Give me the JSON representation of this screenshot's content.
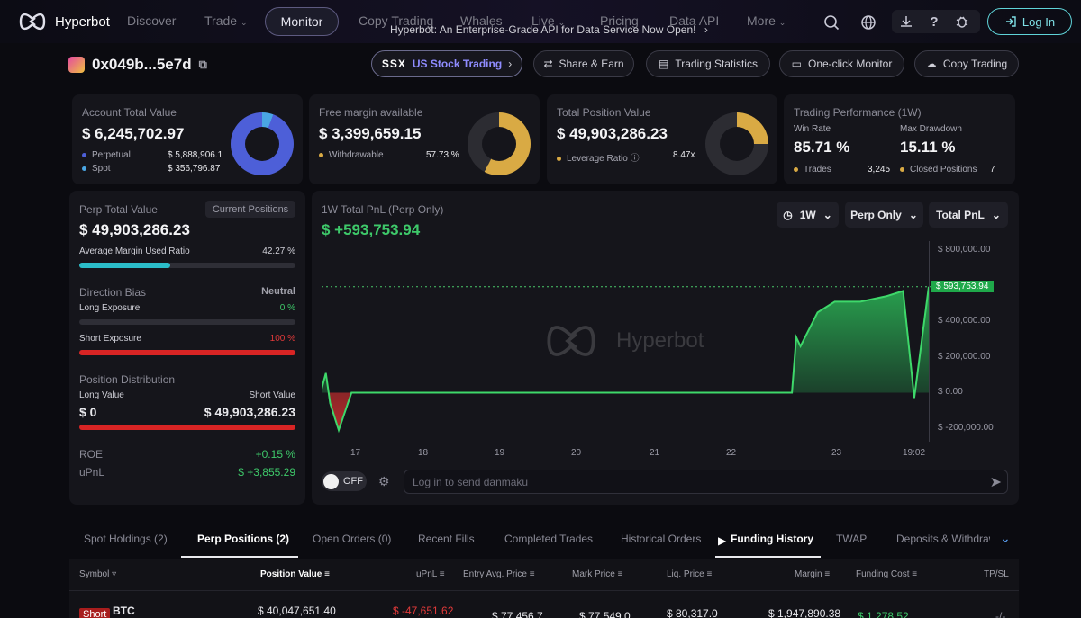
{
  "nav": {
    "brand": "Hyperbot",
    "items": [
      "Discover",
      "Trade",
      "Monitor",
      "Copy Trading",
      "Whales",
      "Live",
      "Pricing",
      "Data API",
      "More"
    ],
    "banner": "Hyperbot: An Enterprise-Grade API for Data Service Now Open!",
    "login": "Log In"
  },
  "wallet": {
    "address": "0x049b...5e7d"
  },
  "actions": {
    "us_stock": "US Stock Trading",
    "share_earn": "Share & Earn",
    "trading_stats": "Trading Statistics",
    "one_click": "One-click Monitor",
    "copy_trading": "Copy Trading"
  },
  "cards": {
    "account": {
      "label": "Account Total Value",
      "value": "$ 6,245,702.97",
      "perp_label": "Perpetual",
      "perp_value": "$ 5,888,906.1",
      "spot_label": "Spot",
      "spot_value": "$ 356,796.87",
      "perp_share": 0.943
    },
    "margin": {
      "label": "Free margin available",
      "value": "$ 3,399,659.15",
      "withdraw_label": "Withdrawable",
      "withdraw_value": "57.73 %",
      "share": 0.5773
    },
    "position": {
      "label": "Total Position Value",
      "value": "$ 49,903,286.23",
      "lev_label": "Leverage Ratio",
      "lev_value": "8.47x",
      "share": 0.25
    },
    "performance": {
      "label": "Trading Performance (1W)",
      "win_label": "Win Rate",
      "win_value": "85.71 %",
      "dd_label": "Max Drawdown",
      "dd_value": "15.11 %",
      "trades_label": "Trades",
      "trades_value": "3,245",
      "closed_label": "Closed Positions",
      "closed_value": "7"
    }
  },
  "perp_panel": {
    "title": "Perp Total Value",
    "current_btn": "Current Positions",
    "value": "$ 49,903,286.23",
    "margin_ratio_label": "Average Margin Used Ratio",
    "margin_ratio_value": "42.27 %",
    "margin_ratio": 0.4227,
    "bias_label": "Direction Bias",
    "bias_value": "Neutral",
    "long_label": "Long Exposure",
    "long_value": "0 %",
    "long_ratio": 0,
    "short_label": "Short Exposure",
    "short_value": "100 %",
    "short_ratio": 1,
    "dist_label": "Position Distribution",
    "long_val_label": "Long Value",
    "short_val_label": "Short Value",
    "long_val": "$ 0",
    "short_val": "$ 49,903,286.23",
    "roe_label": "ROE",
    "roe_value": "+0.15 %",
    "upnl_label": "uPnL",
    "upnl_value": "$ +3,855.29"
  },
  "chart_panel": {
    "title": "1W Total PnL (Perp Only)",
    "value": "$ +593,753.94",
    "range": "1W",
    "filter": "Perp Only",
    "metric": "Total PnL",
    "watermark": "Hyperbot",
    "danmaku_toggle": "OFF",
    "danmaku_placeholder": "Log in to send danmaku"
  },
  "chart_data": {
    "type": "area",
    "ylim": [
      -250000,
      850000
    ],
    "yticks": [
      "$ 800,000.00",
      "$ 400,000.00",
      "$ 200,000.00",
      "$ 0.00",
      "$ -200,000.00"
    ],
    "ytick_values": [
      800000,
      400000,
      200000,
      0,
      -200000
    ],
    "xticks": [
      "17",
      "18",
      "19",
      "20",
      "21",
      "22",
      "23",
      "19:02"
    ],
    "current_label": "$ 593,753.94",
    "current_value": 593753.94,
    "points": [
      [
        0,
        20000
      ],
      [
        0.05,
        110000
      ],
      [
        0.1,
        -60000
      ],
      [
        0.2,
        -210000
      ],
      [
        0.35,
        0
      ],
      [
        5.5,
        0
      ],
      [
        5.55,
        310000
      ],
      [
        5.6,
        260000
      ],
      [
        5.8,
        450000
      ],
      [
        6.0,
        510000
      ],
      [
        6.3,
        510000
      ],
      [
        6.6,
        540000
      ],
      [
        6.8,
        570000
      ],
      [
        6.93,
        -30000
      ],
      [
        7.1,
        593753.94
      ]
    ]
  },
  "bottom": {
    "tabs": [
      "Spot Holdings (2)",
      "Perp Positions (2)",
      "Open Orders (0)",
      "Recent Fills",
      "Completed Trades",
      "Historical Orders",
      "Funding History",
      "TWAP",
      "Deposits & Withdraw"
    ],
    "columns": [
      "Symbol",
      "Position Value",
      "uPnL",
      "Entry Avg. Price",
      "Mark Price",
      "Liq. Price",
      "Margin",
      "Funding Cost",
      "TP/SL"
    ],
    "row": {
      "side": "Short",
      "symbol": "BTC",
      "position_value": "$ 40,047,651.40",
      "upnl": "$ -47,651.62",
      "entry": "$ 77,456.7",
      "mark": "$ 77,549.0",
      "liq": "$ 80,317.0",
      "margin": "$ 1,947,890.38",
      "funding": "$ 1,278.52",
      "tpsl": "-/-"
    }
  }
}
